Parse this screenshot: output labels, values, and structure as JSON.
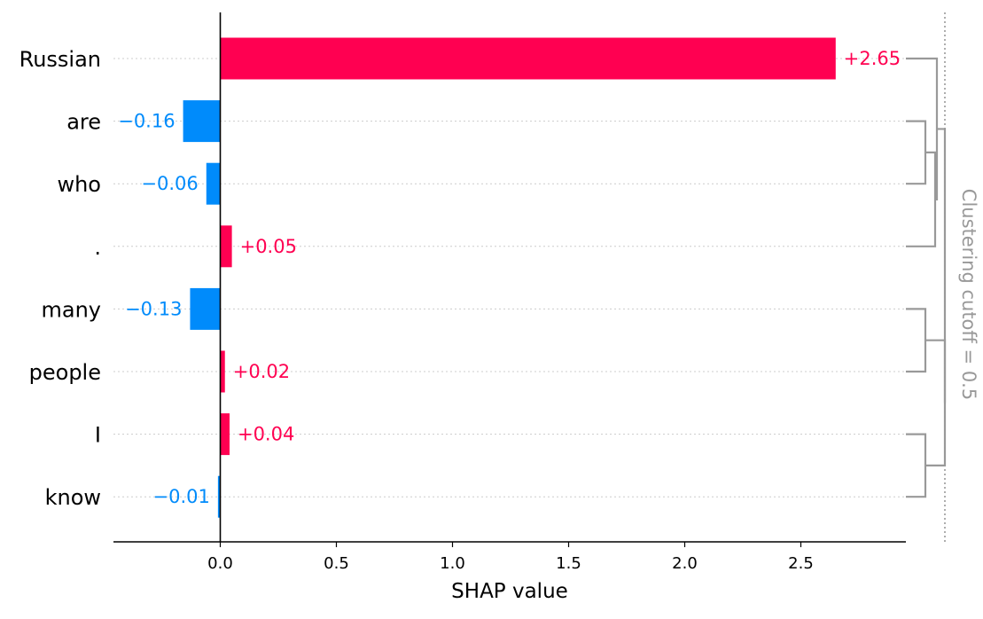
{
  "chart_data": {
    "type": "bar",
    "orientation": "horizontal",
    "categories": [
      "Russian",
      "are",
      "who",
      ".",
      "many",
      "people",
      "I",
      "know"
    ],
    "values": [
      2.65,
      -0.16,
      -0.06,
      0.05,
      -0.13,
      0.02,
      0.04,
      -0.01
    ],
    "value_labels": [
      "+2.65",
      "−0.16",
      "−0.06",
      "+0.05",
      "−0.13",
      "+0.02",
      "+0.04",
      "−0.01"
    ],
    "xlabel": "SHAP value",
    "ylabel": "",
    "xlim": [
      -0.46,
      2.95
    ],
    "xticks": [
      0.0,
      0.5,
      1.0,
      1.5,
      2.0,
      2.5
    ],
    "xtick_labels": [
      "0.0",
      "0.5",
      "1.0",
      "1.5",
      "2.0",
      "2.5"
    ],
    "grid": "dotted horizontal lines at each feature row",
    "colors": {
      "positive": "#ff0051",
      "negative": "#008bfb",
      "axis": "#000000",
      "grid": "#cccccc",
      "cluster": "#999999"
    },
    "clustering": {
      "label": "Clustering cutoff = 0.5",
      "merges": [
        {
          "left": "are",
          "right": "who"
        },
        {
          "left": "are + who",
          "right": "."
        },
        {
          "left": "Russian",
          "right": "are + who + ."
        },
        {
          "left": "many",
          "right": "people"
        },
        {
          "left": "I",
          "right": "know"
        },
        {
          "left": "many + people",
          "right": "I + know"
        },
        {
          "left": "Russian + are + who + .",
          "right": "many + people + I + know"
        }
      ]
    }
  }
}
